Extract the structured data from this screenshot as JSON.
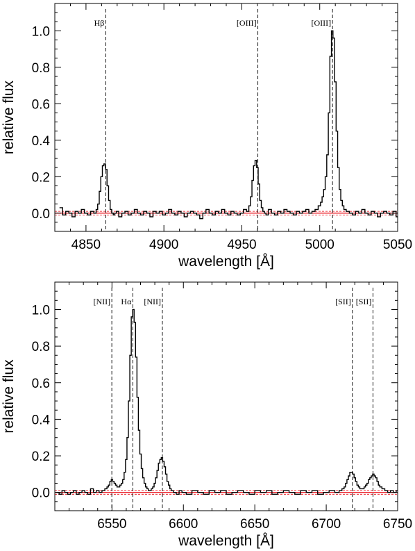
{
  "chart_data": [
    {
      "type": "line",
      "xlabel": "wavelength [Å]",
      "ylabel": "relative flux",
      "xlim": [
        4830,
        5050
      ],
      "ylim": [
        -0.1,
        1.15
      ],
      "xticks": [
        4850,
        4900,
        4950,
        5000,
        5050
      ],
      "yticks": [
        0.0,
        0.2,
        0.4,
        0.6,
        0.8,
        1.0
      ],
      "grid": false,
      "line_markers": [
        {
          "label": "Hβ",
          "wavelength": 4862.7
        },
        {
          "label": "[OIII]",
          "wavelength": 4960.3
        },
        {
          "label": "[OIII]",
          "wavelength": 5008.2
        }
      ],
      "continuum_level": 0.0,
      "continuum_band": [
        -0.01,
        0.01
      ],
      "colors": {
        "spectrum": "#000000",
        "continuum": "#e8000b"
      },
      "series": [
        {
          "x": [
            4834,
            4836,
            4838,
            4840,
            4842,
            4844,
            4846,
            4848,
            4850,
            4852,
            4854,
            4856,
            4857,
            4858,
            4859,
            4860,
            4861,
            4862,
            4863,
            4864,
            4865,
            4866,
            4867,
            4868,
            4869,
            4870,
            4872,
            4874,
            4876,
            4878,
            4880,
            4882,
            4884,
            4886,
            4888,
            4890,
            4892,
            4894,
            4896,
            4898,
            4900,
            4902,
            4904,
            4906,
            4908,
            4910,
            4912,
            4914,
            4916,
            4918,
            4920,
            4922,
            4924,
            4926,
            4928,
            4930,
            4932,
            4934,
            4936,
            4938,
            4940,
            4942,
            4944,
            4946,
            4948,
            4950,
            4952,
            4954,
            4955,
            4956,
            4957,
            4958,
            4959,
            4960,
            4961,
            4962,
            4963,
            4964,
            4965,
            4966,
            4968,
            4970,
            4972,
            4974,
            4976,
            4978,
            4980,
            4982,
            4984,
            4986,
            4988,
            4990,
            4992,
            4994,
            4996,
            4998,
            5000,
            5001,
            5002,
            5003,
            5004,
            5005,
            5006,
            5007,
            5008,
            5009,
            5010,
            5011,
            5012,
            5013,
            5014,
            5015,
            5016,
            5018,
            5020,
            5022,
            5024,
            5026,
            5028,
            5030,
            5032,
            5034,
            5036,
            5038,
            5040,
            5042,
            5044,
            5046,
            5048,
            5050
          ],
          "y": [
            0.03,
            -0.01,
            0.01,
            0.0,
            -0.02,
            0.01,
            0.0,
            0.02,
            0.0,
            -0.01,
            0.01,
            0.0,
            0.02,
            0.05,
            0.12,
            0.2,
            0.26,
            0.27,
            0.24,
            0.15,
            0.07,
            0.02,
            0.0,
            -0.01,
            0.0,
            0.01,
            -0.02,
            0.0,
            0.01,
            -0.01,
            0.0,
            0.02,
            0.0,
            -0.01,
            0.01,
            0.0,
            -0.02,
            0.01,
            0.0,
            0.01,
            -0.01,
            0.0,
            0.02,
            0.0,
            -0.01,
            0.01,
            0.0,
            -0.02,
            0.0,
            0.01,
            0.0,
            -0.01,
            -0.03,
            0.0,
            0.02,
            0.0,
            -0.01,
            0.01,
            0.0,
            0.02,
            0.0,
            -0.01,
            0.01,
            0.0,
            -0.01,
            0.0,
            0.02,
            0.01,
            0.04,
            0.09,
            0.18,
            0.26,
            0.29,
            0.25,
            0.16,
            0.07,
            0.03,
            0.01,
            0.0,
            -0.01,
            0.02,
            0.0,
            -0.01,
            0.01,
            0.0,
            0.02,
            0.01,
            0.0,
            -0.01,
            0.01,
            0.0,
            0.01,
            0.02,
            0.0,
            0.01,
            0.02,
            0.04,
            0.06,
            0.09,
            0.13,
            0.2,
            0.32,
            0.55,
            0.86,
            1.0,
            0.96,
            0.72,
            0.45,
            0.25,
            0.13,
            0.07,
            0.04,
            0.02,
            0.01,
            0.0,
            -0.01,
            0.01,
            0.0,
            0.02,
            0.0,
            -0.01,
            0.01,
            0.0,
            -0.02,
            0.0,
            0.01,
            0.0,
            -0.01,
            0.01,
            -0.02
          ]
        }
      ]
    },
    {
      "type": "line",
      "xlabel": "wavelength [Å]",
      "ylabel": "relative flux",
      "xlim": [
        6510,
        6750
      ],
      "ylim": [
        -0.1,
        1.15
      ],
      "xticks": [
        6550,
        6600,
        6650,
        6700,
        6750
      ],
      "yticks": [
        0.0,
        0.2,
        0.4,
        0.6,
        0.8,
        1.0
      ],
      "grid": false,
      "line_markers": [
        {
          "label": "[NII]",
          "wavelength": 6549.9
        },
        {
          "label": "Hα",
          "wavelength": 6564.6
        },
        {
          "label": "[NII]",
          "wavelength": 6585.3
        },
        {
          "label": "[SII]",
          "wavelength": 6718.3
        },
        {
          "label": "[SII]",
          "wavelength": 6732.7
        }
      ],
      "continuum_level": 0.0,
      "continuum_band": [
        -0.01,
        0.01
      ],
      "colors": {
        "spectrum": "#000000",
        "continuum": "#e8000b"
      },
      "series": [
        {
          "x": [
            6512,
            6514,
            6516,
            6518,
            6520,
            6522,
            6524,
            6526,
            6528,
            6530,
            6532,
            6534,
            6536,
            6538,
            6540,
            6542,
            6544,
            6546,
            6547,
            6548,
            6549,
            6550,
            6551,
            6552,
            6553,
            6554,
            6555,
            6556,
            6557,
            6558,
            6559,
            6560,
            6561,
            6562,
            6563,
            6564,
            6565,
            6566,
            6567,
            6568,
            6569,
            6570,
            6571,
            6572,
            6573,
            6574,
            6575,
            6576,
            6577,
            6578,
            6579,
            6580,
            6581,
            6582,
            6583,
            6584,
            6585,
            6586,
            6587,
            6588,
            6589,
            6590,
            6591,
            6592,
            6594,
            6596,
            6598,
            6600,
            6604,
            6608,
            6612,
            6616,
            6620,
            6624,
            6628,
            6632,
            6636,
            6640,
            6644,
            6648,
            6652,
            6656,
            6660,
            6664,
            6668,
            6672,
            6676,
            6680,
            6684,
            6688,
            6692,
            6696,
            6700,
            6704,
            6708,
            6710,
            6712,
            6713,
            6714,
            6715,
            6716,
            6717,
            6718,
            6719,
            6720,
            6721,
            6722,
            6723,
            6724,
            6725,
            6726,
            6727,
            6728,
            6729,
            6730,
            6731,
            6732,
            6733,
            6734,
            6735,
            6736,
            6737,
            6738,
            6740,
            6742,
            6744,
            6746,
            6748,
            6750
          ],
          "y": [
            0.0,
            -0.01,
            0.01,
            0.0,
            -0.01,
            0.0,
            0.01,
            -0.01,
            0.0,
            0.01,
            0.0,
            -0.01,
            0.02,
            0.0,
            0.01,
            0.0,
            0.01,
            0.02,
            0.03,
            0.04,
            0.06,
            0.07,
            0.06,
            0.05,
            0.04,
            0.03,
            0.03,
            0.04,
            0.05,
            0.07,
            0.11,
            0.18,
            0.3,
            0.5,
            0.75,
            0.96,
            1.0,
            0.93,
            0.74,
            0.52,
            0.34,
            0.21,
            0.13,
            0.08,
            0.05,
            0.03,
            0.02,
            0.01,
            0.01,
            0.02,
            0.03,
            0.05,
            0.08,
            0.12,
            0.16,
            0.18,
            0.19,
            0.17,
            0.14,
            0.1,
            0.06,
            0.04,
            0.02,
            0.01,
            0.0,
            -0.01,
            0.01,
            0.0,
            -0.01,
            0.01,
            0.0,
            -0.01,
            0.01,
            0.0,
            0.01,
            -0.01,
            0.0,
            0.01,
            0.0,
            -0.01,
            0.01,
            0.0,
            0.01,
            -0.01,
            0.0,
            0.01,
            0.0,
            -0.01,
            0.01,
            0.0,
            0.01,
            -0.01,
            0.0,
            0.01,
            0.0,
            0.01,
            0.02,
            0.03,
            0.05,
            0.07,
            0.09,
            0.11,
            0.11,
            0.1,
            0.08,
            0.06,
            0.04,
            0.03,
            0.02,
            0.02,
            0.02,
            0.03,
            0.04,
            0.05,
            0.07,
            0.08,
            0.09,
            0.1,
            0.09,
            0.08,
            0.06,
            0.04,
            0.03,
            0.02,
            0.01,
            0.0,
            0.01,
            0.0,
            0.01
          ]
        }
      ]
    }
  ]
}
